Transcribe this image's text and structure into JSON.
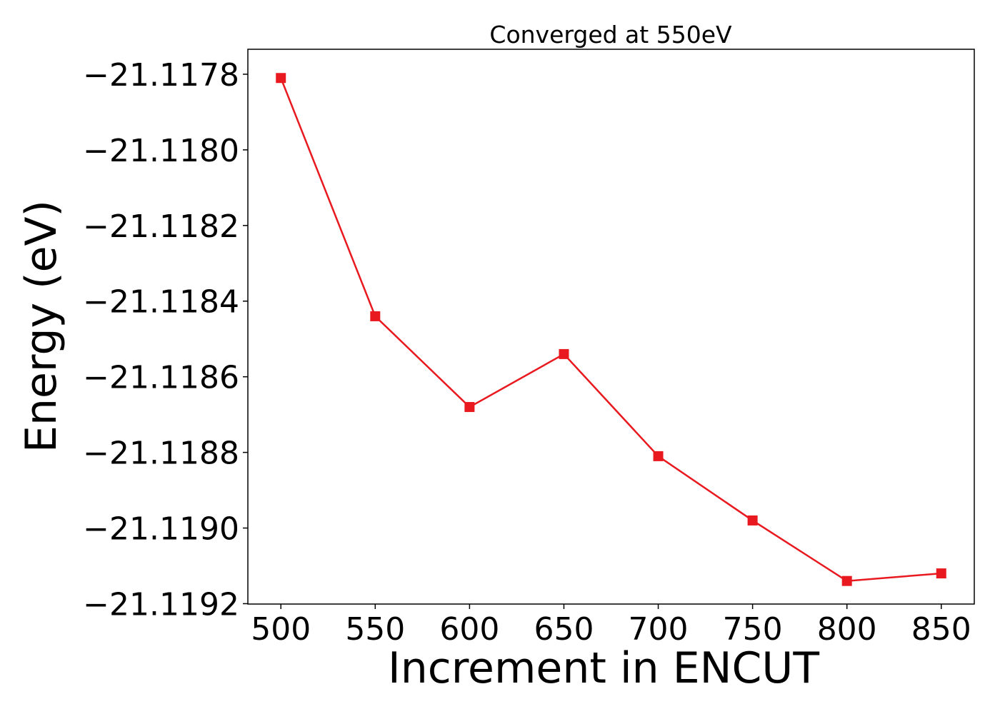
{
  "chart_data": {
    "type": "line",
    "title": "Converged at 550eV",
    "xlabel": "Increment in ENCUT",
    "ylabel": "Energy (eV)",
    "x": [
      500,
      550,
      600,
      650,
      700,
      750,
      800,
      850
    ],
    "series": [
      {
        "values": [
          -21.11781,
          -21.11844,
          -21.11868,
          -21.11854,
          -21.11881,
          -21.11898,
          -21.11914,
          -21.11912
        ],
        "color": "#e8191f",
        "marker": "square"
      }
    ],
    "xticks": [
      500,
      550,
      600,
      650,
      700,
      750,
      800,
      850
    ],
    "xtick_labels": [
      "500",
      "550",
      "600",
      "650",
      "700",
      "750",
      "800",
      "850"
    ],
    "yticks": [
      -21.1178,
      -21.118,
      -21.1182,
      -21.1184,
      -21.1186,
      -21.1188,
      -21.119,
      -21.1192
    ],
    "ytick_labels": [
      "−21.1178",
      "−21.1180",
      "−21.1182",
      "−21.1184",
      "−21.1186",
      "−21.1188",
      "−21.1190",
      "−21.1192"
    ],
    "xlim": [
      482.5,
      867.5
    ],
    "ylim": [
      -21.119201,
      -21.117734
    ],
    "grid": false,
    "legend": false
  }
}
